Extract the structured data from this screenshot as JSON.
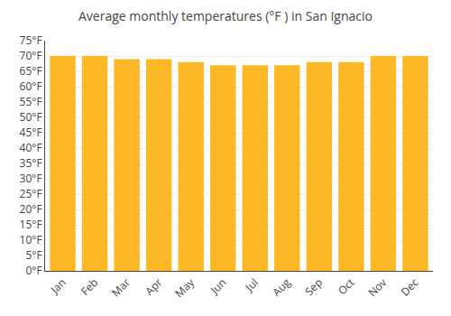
{
  "chart_data": {
    "type": "bar",
    "title": "Average monthly temperatures (°F ) in San Ignacio",
    "categories": [
      "Jan",
      "Feb",
      "Mar",
      "Apr",
      "May",
      "Jun",
      "Jul",
      "Aug",
      "Sep",
      "Oct",
      "Nov",
      "Dec"
    ],
    "values": [
      70,
      70,
      69,
      69,
      68,
      67,
      67,
      67,
      68,
      68,
      70,
      70
    ],
    "color": "#FDB827",
    "ylim": [
      0,
      75
    ],
    "yticks": [
      {
        "value": 0,
        "label": "0°F"
      },
      {
        "value": 5,
        "label": "5°F"
      },
      {
        "value": 10,
        "label": "10°F"
      },
      {
        "value": 15,
        "label": "15°F"
      },
      {
        "value": 20,
        "label": "20°F"
      },
      {
        "value": 25,
        "label": "25°F"
      },
      {
        "value": 30,
        "label": "30°F"
      },
      {
        "value": 35,
        "label": "35°F"
      },
      {
        "value": 40,
        "label": "40°F"
      },
      {
        "value": 45,
        "label": "45°F"
      },
      {
        "value": 50,
        "label": "50°F"
      },
      {
        "value": 55,
        "label": "55°F"
      },
      {
        "value": 60,
        "label": "60°F"
      },
      {
        "value": 65,
        "label": "65°F"
      },
      {
        "value": 70,
        "label": "70°F"
      },
      {
        "value": 75,
        "label": "75°F"
      }
    ],
    "grid": true
  }
}
